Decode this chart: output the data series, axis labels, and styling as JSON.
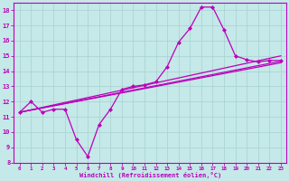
{
  "xlabel": "Windchill (Refroidissement éolien,°C)",
  "xlim": [
    -0.5,
    23.5
  ],
  "ylim": [
    8,
    18.5
  ],
  "xticks": [
    0,
    1,
    2,
    3,
    4,
    5,
    6,
    7,
    8,
    9,
    10,
    11,
    12,
    13,
    14,
    15,
    16,
    17,
    18,
    19,
    20,
    21,
    22,
    23
  ],
  "yticks": [
    8,
    9,
    10,
    11,
    12,
    13,
    14,
    15,
    16,
    17,
    18
  ],
  "background_color": "#c5e8e8",
  "grid_color": "#a8d0d0",
  "line_color": "#bb00bb",
  "line_width": 0.9,
  "marker": "D",
  "marker_size": 2.0,
  "curve1_x": [
    0,
    1,
    2,
    3,
    4,
    5,
    6,
    7,
    8,
    9,
    10,
    11,
    12,
    13,
    14,
    15,
    16,
    17,
    18,
    19,
    20,
    21,
    22,
    23
  ],
  "curve1_y": [
    11.3,
    12.0,
    11.3,
    11.5,
    11.5,
    9.5,
    8.4,
    10.5,
    11.5,
    12.8,
    13.0,
    13.1,
    13.3,
    14.3,
    15.9,
    16.8,
    18.2,
    18.2,
    16.7,
    15.0,
    14.75,
    14.6,
    14.7,
    14.7
  ],
  "curve2_x": [
    0,
    23
  ],
  "curve2_y": [
    11.3,
    14.55
  ],
  "curve3_x": [
    0,
    23
  ],
  "curve3_y": [
    11.3,
    14.65
  ],
  "curve4_x": [
    0,
    23
  ],
  "curve4_y": [
    11.3,
    15.0
  ]
}
